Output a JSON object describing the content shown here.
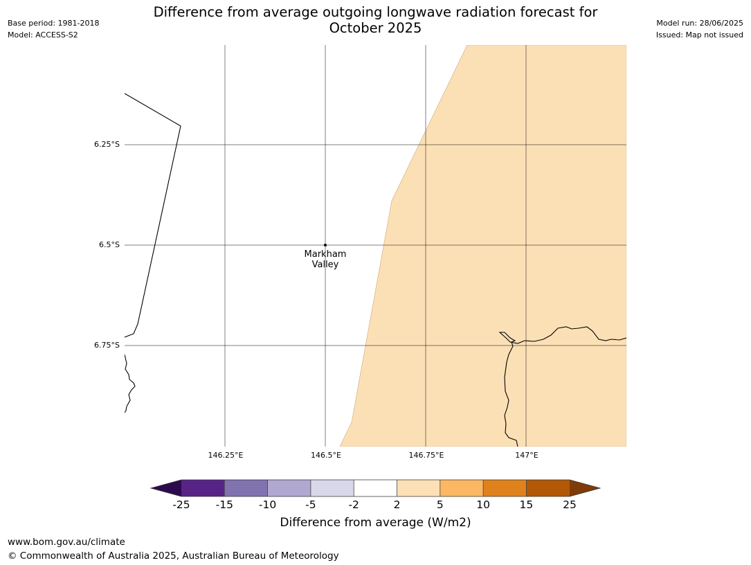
{
  "header": {
    "title_line1": "Difference from average outgoing longwave radiation forecast for",
    "title_line2": "October 2025",
    "base_period": "Base period: 1981-2018",
    "model": "Model: ACCESS-S2",
    "model_run": "Model run: 28/06/2025",
    "issued": "Issued: Map not issued"
  },
  "map": {
    "lat_labels": [
      "6.25°S",
      "6.5°S",
      "6.75°S"
    ],
    "lon_labels": [
      "146.25°E",
      "146.5°E",
      "146.75°E",
      "147°E"
    ],
    "place": {
      "name_line1": "Markham",
      "name_line2": "Valley"
    },
    "fill_color": "#fce0b5"
  },
  "colorbar": {
    "title": "Difference from average (W/m2)",
    "ticks": [
      "-25",
      "-15",
      "-10",
      "-5",
      "-2",
      "2",
      "5",
      "10",
      "15",
      "25"
    ],
    "colors": {
      "below_min": "#2d0a4e",
      "bins": [
        "#582387",
        "#8172b0",
        "#b1a8d2",
        "#d8d8ea",
        "#ffffff",
        "#fde0b5",
        "#fbb762",
        "#e0821c",
        "#b35806"
      ],
      "above_max": "#7f3b08"
    }
  },
  "footer": {
    "website": "www.bom.gov.au/climate",
    "copyright": "© Commonwealth of Australia 2025, Australian Bureau of Meteorology"
  }
}
